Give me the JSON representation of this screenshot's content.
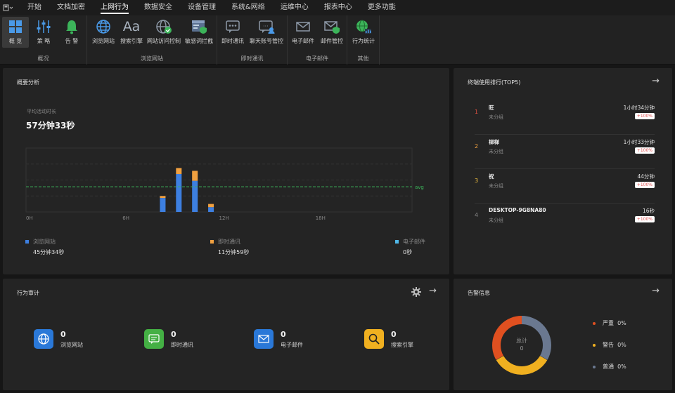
{
  "menubar": {
    "items": [
      "开始",
      "文档加密",
      "上网行为",
      "数据安全",
      "设备管理",
      "系统&网络",
      "运维中心",
      "报表中心",
      "更多功能"
    ],
    "active": "上网行为"
  },
  "ribbon": {
    "groups": [
      {
        "label": "概况",
        "tools": [
          "概 览",
          "策 略",
          "告 警"
        ]
      },
      {
        "label": "浏览网站",
        "tools": [
          "浏览网站",
          "搜索引擎",
          "网站访问控制",
          "敏感词拦截"
        ]
      },
      {
        "label": "即时通讯",
        "tools": [
          "即时通讯",
          "聊天账号管控"
        ]
      },
      {
        "label": "电子邮件",
        "tools": [
          "电子邮件",
          "邮件管控"
        ]
      },
      {
        "label": "其他",
        "tools": [
          "行为统计"
        ]
      }
    ]
  },
  "overview": {
    "title": "概要分析",
    "avg_label": "平均活动时长",
    "avg_value": "57分钟33秒",
    "avg_line_label": "avg",
    "legend": [
      {
        "name": "浏览网站",
        "value": "45分钟34秒",
        "color": "#3d7fe0"
      },
      {
        "name": "即时通讯",
        "value": "11分钟59秒",
        "color": "#f0a040"
      },
      {
        "name": "电子邮件",
        "value": "0秒",
        "color": "#50b8e8"
      }
    ]
  },
  "chart_data": {
    "type": "bar",
    "x_ticks": [
      "0H",
      "6H",
      "12H",
      "18H"
    ],
    "x_range": [
      0,
      24
    ],
    "bars": [
      {
        "hour": 8,
        "web": 0.35,
        "im": 0.05
      },
      {
        "hour": 9,
        "web": 0.95,
        "im": 0.15
      },
      {
        "hour": 10,
        "web": 0.78,
        "im": 0.25
      },
      {
        "hour": 11,
        "web": 0.12,
        "im": 0.08
      }
    ],
    "y_range": [
      0,
      1.6
    ],
    "avg": 0.63
  },
  "ranking": {
    "title": "终端使用排行(TOP5)",
    "rows": [
      {
        "rank": "1",
        "name": "旺",
        "group": "未分组",
        "time": "1小时34分钟",
        "badge": "+100%",
        "color": "#e05040"
      },
      {
        "rank": "2",
        "name": "梯梯",
        "group": "未分组",
        "time": "1小时33分钟",
        "badge": "+100%",
        "color": "#f0a040"
      },
      {
        "rank": "3",
        "name": "祝",
        "group": "未分组",
        "time": "44分钟",
        "badge": "+100%",
        "color": "#f0c040"
      },
      {
        "rank": "4",
        "name": "DESKTOP-9G8NA80",
        "group": "未分组",
        "time": "16秒",
        "badge": "+100%",
        "color": "#888888"
      }
    ]
  },
  "audit": {
    "title": "行为审计",
    "stats": [
      {
        "value": "0",
        "label": "浏览网站",
        "icon": "globe-icon",
        "color": "#2a78d8"
      },
      {
        "value": "0",
        "label": "即时通讯",
        "icon": "chat-icon",
        "color": "#44b044"
      },
      {
        "value": "0",
        "label": "电子邮件",
        "icon": "mail-icon",
        "color": "#2a78d8"
      },
      {
        "value": "0",
        "label": "搜索引擎",
        "icon": "search-icon",
        "color": "#f0b020"
      }
    ]
  },
  "alerts": {
    "title": "告警信息",
    "center_label": "总计",
    "center_value": "0",
    "legend": [
      {
        "name": "严重",
        "value": "0%",
        "color": "#e05020"
      },
      {
        "name": "警告",
        "value": "0%",
        "color": "#f0b020"
      },
      {
        "name": "普通",
        "value": "0%",
        "color": "#6a7890"
      }
    ]
  }
}
